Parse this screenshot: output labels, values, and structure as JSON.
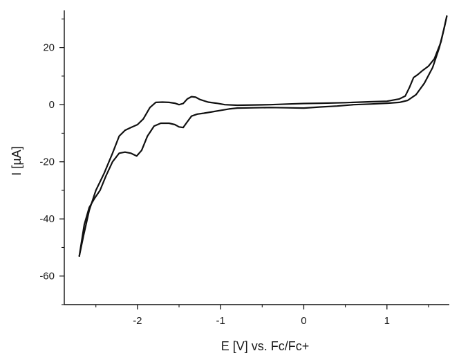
{
  "chart_data": {
    "type": "line",
    "title": "",
    "xlabel": "E [V] vs. Fc/Fc+",
    "ylabel": "I [µA]",
    "xlim": [
      -2.88,
      1.75
    ],
    "ylim": [
      -70,
      33
    ],
    "x_ticks": [
      -2,
      -1,
      0,
      1
    ],
    "x_tick_labels": [
      "-2",
      "-1",
      "0",
      "1"
    ],
    "y_ticks": [
      -60,
      -40,
      -20,
      0,
      20
    ],
    "y_tick_labels": [
      "-60",
      "-40",
      "-20",
      "0",
      "20"
    ],
    "grid": false,
    "legend": "none",
    "line_color": "#111111",
    "series": [
      {
        "values": [
          [
            -2.7,
            -53
          ],
          [
            -2.64,
            -42
          ],
          [
            -2.58,
            -36
          ],
          [
            -2.52,
            -33
          ],
          [
            -2.45,
            -30
          ],
          [
            -2.38,
            -25
          ],
          [
            -2.3,
            -20
          ],
          [
            -2.22,
            -17
          ],
          [
            -2.15,
            -16.6
          ],
          [
            -2.08,
            -17
          ],
          [
            -2.01,
            -18
          ],
          [
            -1.95,
            -16
          ],
          [
            -1.88,
            -11
          ],
          [
            -1.8,
            -7.5
          ],
          [
            -1.72,
            -6.5
          ],
          [
            -1.62,
            -6.5
          ],
          [
            -1.55,
            -7
          ],
          [
            -1.5,
            -7.8
          ],
          [
            -1.45,
            -8
          ],
          [
            -1.4,
            -6
          ],
          [
            -1.35,
            -4
          ],
          [
            -1.28,
            -3.3
          ],
          [
            -1.2,
            -3
          ],
          [
            -1.1,
            -2.5
          ],
          [
            -1.0,
            -2
          ],
          [
            -0.9,
            -1.5
          ],
          [
            -0.8,
            -1.2
          ],
          [
            -0.6,
            -1.1
          ],
          [
            -0.4,
            -1.0
          ],
          [
            -0.2,
            -1.1
          ],
          [
            0.0,
            -1.2
          ],
          [
            0.2,
            -0.8
          ],
          [
            0.4,
            -0.5
          ],
          [
            0.6,
            0.0
          ],
          [
            0.8,
            0.2
          ],
          [
            1.0,
            0.5
          ],
          [
            1.15,
            0.8
          ],
          [
            1.25,
            1.5
          ],
          [
            1.35,
            3.5
          ],
          [
            1.45,
            7.5
          ],
          [
            1.55,
            13
          ],
          [
            1.63,
            20
          ],
          [
            1.69,
            27
          ],
          [
            1.72,
            31
          ]
        ]
      },
      {
        "values": [
          [
            1.72,
            31
          ],
          [
            1.65,
            22
          ],
          [
            1.57,
            16
          ],
          [
            1.5,
            13.5
          ],
          [
            1.43,
            12
          ],
          [
            1.37,
            10.5
          ],
          [
            1.32,
            9.5
          ],
          [
            1.27,
            6
          ],
          [
            1.22,
            3
          ],
          [
            1.15,
            2
          ],
          [
            1.0,
            1.2
          ],
          [
            0.8,
            1.0
          ],
          [
            0.5,
            0.7
          ],
          [
            0.2,
            0.5
          ],
          [
            0.0,
            0.4
          ],
          [
            -0.2,
            0.2
          ],
          [
            -0.4,
            0.0
          ],
          [
            -0.6,
            -0.1
          ],
          [
            -0.8,
            -0.2
          ],
          [
            -0.95,
            0.0
          ],
          [
            -1.05,
            0.5
          ],
          [
            -1.15,
            0.9
          ],
          [
            -1.25,
            1.8
          ],
          [
            -1.3,
            2.6
          ],
          [
            -1.35,
            2.8
          ],
          [
            -1.4,
            2.0
          ],
          [
            -1.45,
            0.4
          ],
          [
            -1.5,
            0.0
          ],
          [
            -1.55,
            0.5
          ],
          [
            -1.62,
            0.8
          ],
          [
            -1.7,
            0.9
          ],
          [
            -1.78,
            0.8
          ],
          [
            -1.85,
            -1.0
          ],
          [
            -1.93,
            -5
          ],
          [
            -2.0,
            -7
          ],
          [
            -2.08,
            -8
          ],
          [
            -2.15,
            -9
          ],
          [
            -2.22,
            -11
          ],
          [
            -2.3,
            -17
          ],
          [
            -2.4,
            -24
          ],
          [
            -2.5,
            -30
          ],
          [
            -2.58,
            -37
          ],
          [
            -2.65,
            -46
          ],
          [
            -2.7,
            -53
          ]
        ]
      }
    ]
  }
}
